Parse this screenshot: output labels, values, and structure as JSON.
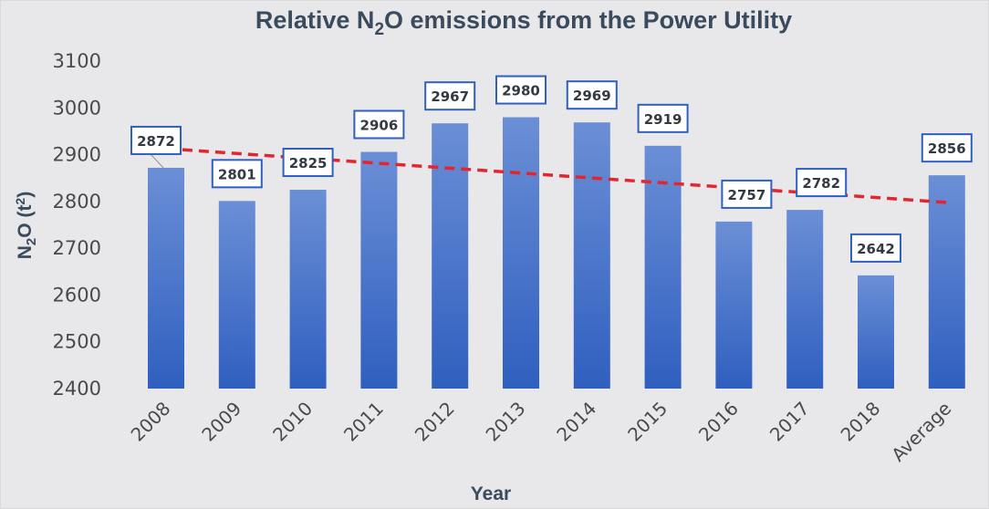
{
  "chart_data": {
    "type": "bar",
    "title": "Relative N₂O emissions from the Power Utility",
    "title_parts": [
      "Relative N",
      "2",
      "O emissions from the Power Utility"
    ],
    "xlabel": "Year",
    "ylabel": "N₂O (t²)",
    "ylabel_parts": [
      "N",
      "2",
      "O (t",
      "2",
      ")"
    ],
    "categories": [
      "2008",
      "2009",
      "2010",
      "2011",
      "2012",
      "2013",
      "2014",
      "2015",
      "2016",
      "2017",
      "2018",
      "Average"
    ],
    "values": [
      2872,
      2801,
      2825,
      2906,
      2967,
      2980,
      2969,
      2919,
      2757,
      2782,
      2642,
      2856
    ],
    "ylim": [
      2400,
      3100
    ],
    "yticks": [
      2400,
      2500,
      2600,
      2700,
      2800,
      2900,
      3000,
      3100
    ],
    "trendline": {
      "type": "linear",
      "style": "dashed",
      "start": 2913,
      "end": 2798
    },
    "grid": false,
    "legend": "none",
    "colors": {
      "bar_top": "#6b8fd6",
      "bar_bottom": "#2f5fbf",
      "trend": "#e3262d",
      "label_border": "#2f5fbf",
      "background": "#e8e8ea"
    }
  }
}
